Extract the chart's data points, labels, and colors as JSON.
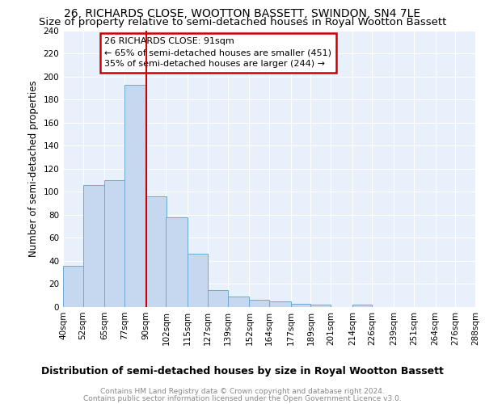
{
  "title": "26, RICHARDS CLOSE, WOOTTON BASSETT, SWINDON, SN4 7LE",
  "subtitle": "Size of property relative to semi-detached houses in Royal Wootton Bassett",
  "xlabel": "Distribution of semi-detached houses by size in Royal Wootton Bassett",
  "ylabel": "Number of semi-detached properties",
  "annotation_line1": "26 RICHARDS CLOSE: 91sqm",
  "annotation_line2": "← 65% of semi-detached houses are smaller (451)",
  "annotation_line3": "35% of semi-detached houses are larger (244) →",
  "bin_edges": [
    40,
    52,
    65,
    77,
    90,
    102,
    115,
    127,
    139,
    152,
    164,
    177,
    189,
    201,
    214,
    226,
    239,
    251,
    264,
    276,
    288
  ],
  "bin_labels": [
    "40sqm",
    "52sqm",
    "65sqm",
    "77sqm",
    "90sqm",
    "102sqm",
    "115sqm",
    "127sqm",
    "139sqm",
    "152sqm",
    "164sqm",
    "177sqm",
    "189sqm",
    "201sqm",
    "214sqm",
    "226sqm",
    "239sqm",
    "251sqm",
    "264sqm",
    "276sqm",
    "288sqm"
  ],
  "bar_heights": [
    36,
    106,
    110,
    193,
    96,
    78,
    46,
    15,
    9,
    6,
    5,
    3,
    2,
    0,
    2,
    0,
    0,
    0,
    0,
    0
  ],
  "bar_color": "#c5d8f0",
  "bar_edge_color": "#6aaad4",
  "vline_color": "#cc0000",
  "vline_x": 90,
  "background_color": "#e8f0fb",
  "annotation_box_color": "#cc0000",
  "ylim": [
    0,
    240
  ],
  "yticks": [
    0,
    20,
    40,
    60,
    80,
    100,
    120,
    140,
    160,
    180,
    200,
    220,
    240
  ],
  "footer_line1": "Contains HM Land Registry data © Crown copyright and database right 2024.",
  "footer_line2": "Contains public sector information licensed under the Open Government Licence v3.0.",
  "title_fontsize": 10,
  "subtitle_fontsize": 9.5,
  "xlabel_fontsize": 9,
  "ylabel_fontsize": 8.5,
  "tick_fontsize": 7.5,
  "annotation_fontsize": 8,
  "footer_fontsize": 6.5
}
